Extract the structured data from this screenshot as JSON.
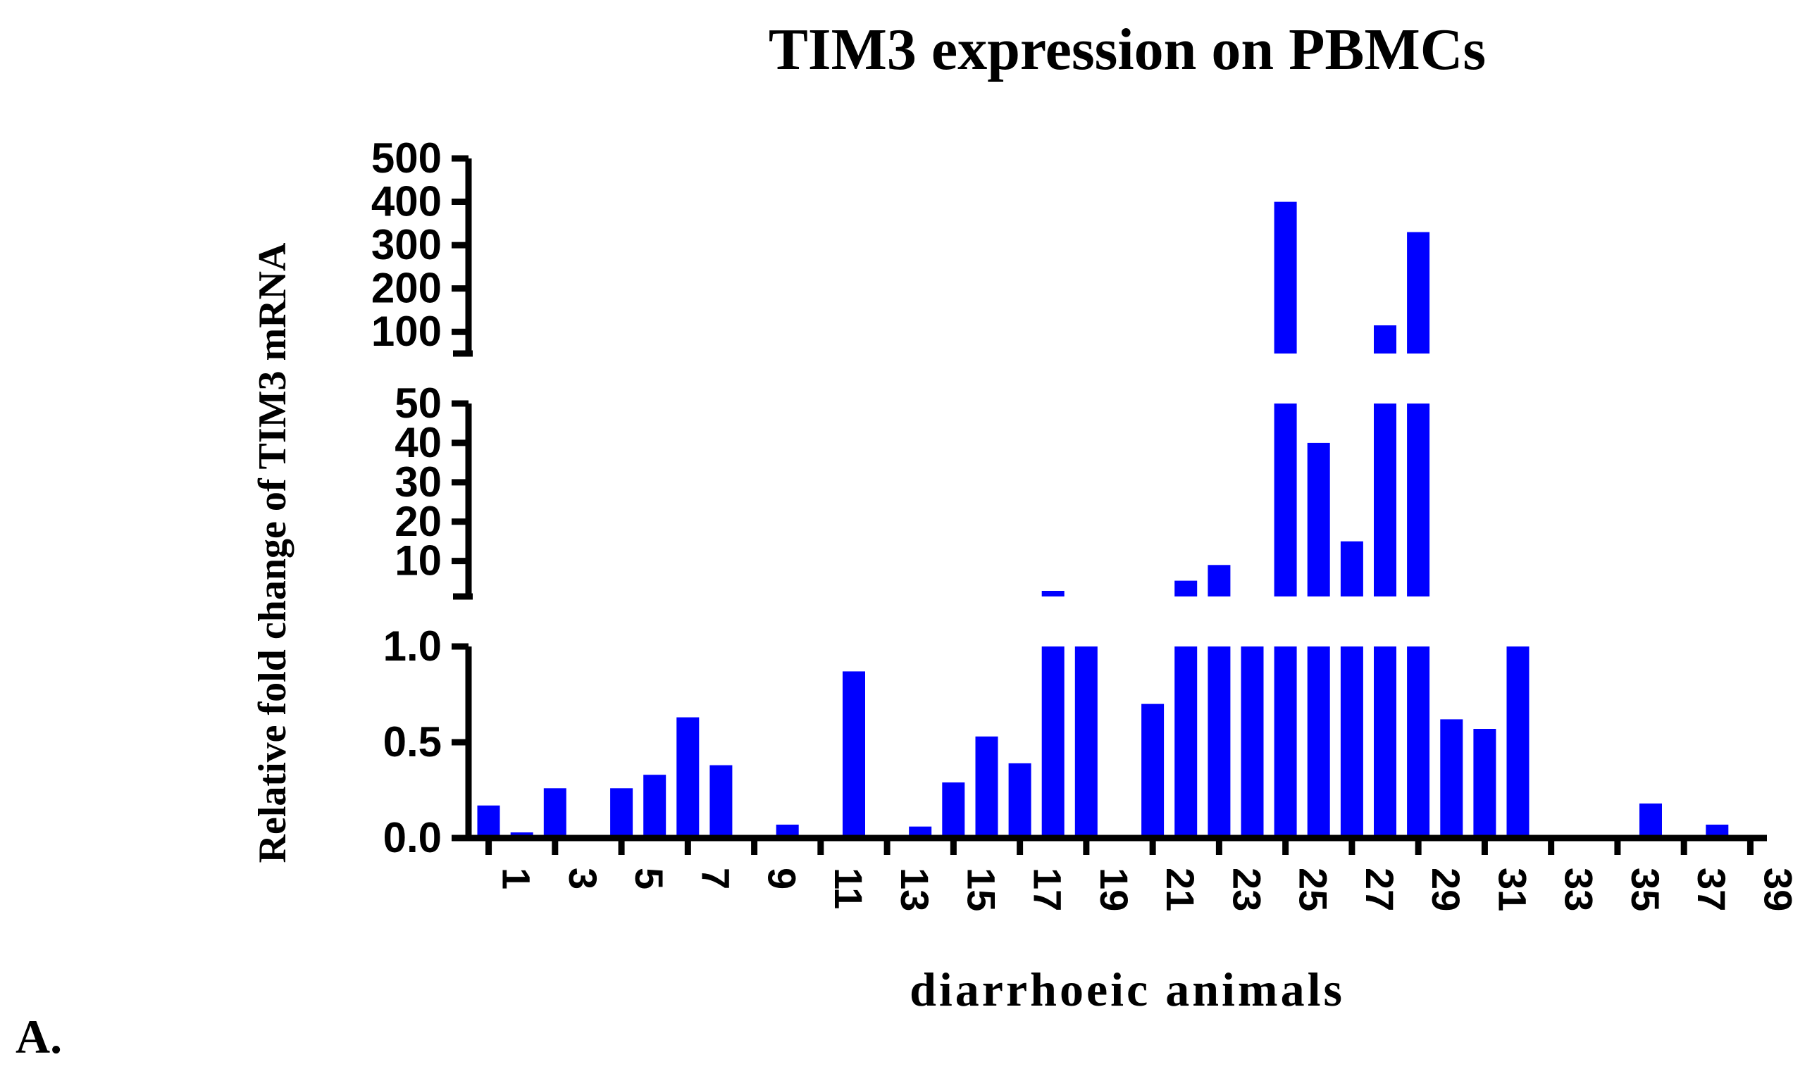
{
  "panel_label": "A.",
  "chart_data": {
    "type": "bar",
    "title": "TIM3 expression on PBMCs",
    "xlabel": "diarrhoeic animals",
    "ylabel": "Relative fold change of TIM3 mRNA",
    "bar_color": "#0000ff",
    "axis_color": "#000000",
    "categories": [
      1,
      2,
      3,
      4,
      5,
      6,
      7,
      8,
      9,
      10,
      11,
      12,
      13,
      14,
      15,
      16,
      17,
      18,
      19,
      20,
      21,
      22,
      23,
      24,
      25,
      26,
      27,
      28,
      29,
      30,
      31,
      32,
      33,
      34,
      35,
      36,
      37,
      38,
      39
    ],
    "x_tick_labels": [
      "1",
      "3",
      "5",
      "7",
      "9",
      "11",
      "13",
      "15",
      "17",
      "19",
      "21",
      "23",
      "25",
      "27",
      "29",
      "31",
      "33",
      "35",
      "37",
      "39"
    ],
    "values": [
      0.17,
      0.02,
      0.26,
      0,
      0.26,
      0.33,
      0.63,
      0.38,
      0,
      0.07,
      0,
      0.87,
      0,
      0.06,
      0.29,
      0.53,
      0.39,
      2,
      1,
      0,
      0.7,
      5,
      9,
      1,
      400,
      40,
      15,
      115,
      330,
      0.62,
      0.57,
      1,
      0,
      0,
      0,
      0.18,
      0,
      0.07,
      0
    ],
    "broken_axis_segments": [
      {
        "name": "low",
        "ylim": [
          0,
          1.0
        ],
        "ticks": [
          0.0,
          0.5,
          1.0
        ],
        "tick_labels": [
          "0.0",
          "0.5",
          "1.0"
        ]
      },
      {
        "name": "mid",
        "ylim": [
          1,
          50
        ],
        "ticks": [
          10,
          20,
          30,
          40,
          50
        ],
        "tick_labels": [
          "10",
          "20",
          "30",
          "40",
          "50"
        ]
      },
      {
        "name": "high",
        "ylim": [
          50,
          500
        ],
        "ticks": [
          100,
          200,
          300,
          400,
          500
        ],
        "tick_labels": [
          "100",
          "200",
          "300",
          "400",
          "500"
        ]
      }
    ]
  }
}
